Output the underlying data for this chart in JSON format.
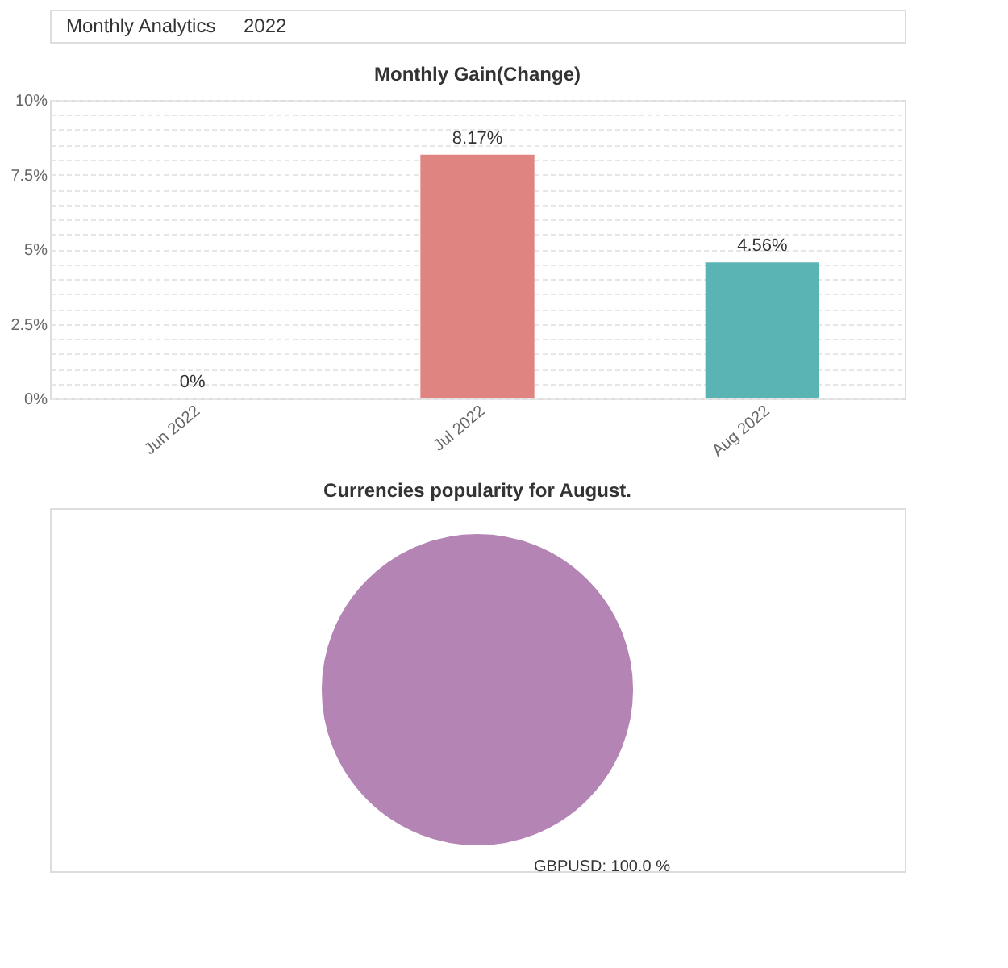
{
  "chart_data": [
    {
      "type": "bar",
      "title": "Monthly Gain(Change)",
      "annotations": [
        "Monthly Analytics",
        "2022"
      ],
      "categories": [
        "Jun 2022",
        "Jul 2022",
        "Aug 2022"
      ],
      "values": [
        0,
        8.17,
        4.56
      ],
      "colors": [
        "#e08482",
        "#e08482",
        "#5ab4b3"
      ],
      "value_labels": [
        "0%",
        "8.17%",
        "4.56%"
      ],
      "ylim": [
        0,
        10
      ],
      "yticks": [
        {
          "value": 0,
          "label": "0%"
        },
        {
          "value": 0.5,
          "label": null
        },
        {
          "value": 1,
          "label": null
        },
        {
          "value": 1.5,
          "label": null
        },
        {
          "value": 2,
          "label": null
        },
        {
          "value": 2.5,
          "label": "2.5%"
        },
        {
          "value": 3,
          "label": null
        },
        {
          "value": 3.5,
          "label": null
        },
        {
          "value": 4,
          "label": null
        },
        {
          "value": 4.5,
          "label": null
        },
        {
          "value": 5,
          "label": "5%"
        },
        {
          "value": 5.5,
          "label": null
        },
        {
          "value": 6,
          "label": null
        },
        {
          "value": 6.5,
          "label": null
        },
        {
          "value": 7,
          "label": null
        },
        {
          "value": 7.5,
          "label": "7.5%"
        },
        {
          "value": 8,
          "label": null
        },
        {
          "value": 8.5,
          "label": null
        },
        {
          "value": 9,
          "label": null
        },
        {
          "value": 9.5,
          "label": null
        },
        {
          "value": 10,
          "label": "10%"
        }
      ],
      "grid": "y"
    },
    {
      "type": "pie",
      "title": "Currencies popularity for August.",
      "categories": [
        "GBPUSD"
      ],
      "values": [
        100
      ],
      "colors": [
        "#b384b4"
      ],
      "value_labels": [
        "100.0 %"
      ]
    }
  ]
}
